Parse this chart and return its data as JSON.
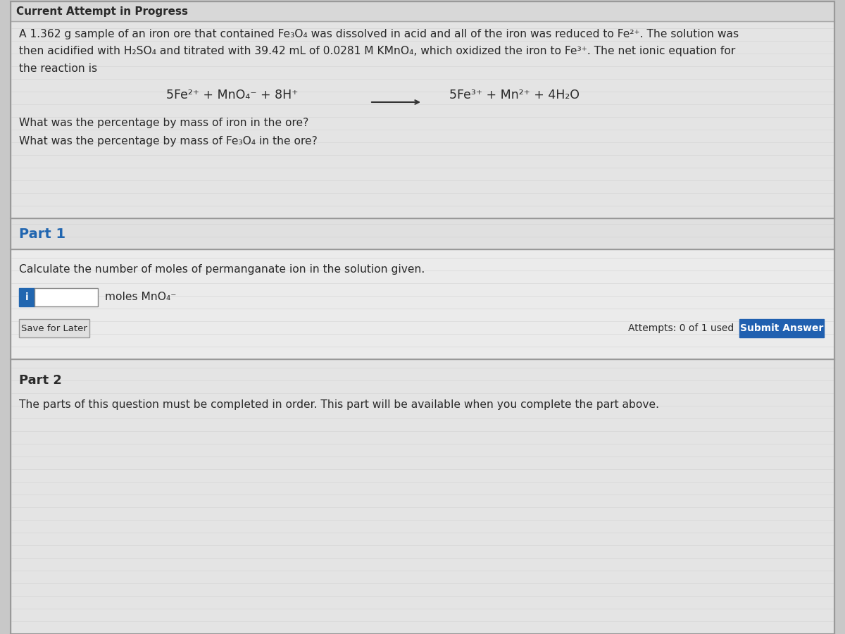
{
  "bg_color": "#c8c8c8",
  "header_text": "Current Attempt in Progress",
  "body_line1": "A 1.362 g sample of an iron ore that contained Fe₃O₄ was dissolved in acid and all of the iron was reduced to Fe²⁺. The solution was",
  "body_line2": "then acidified with H₂SO₄ and titrated with 39.42 mL of 0.0281 M KMnO₄, which oxidized the iron to Fe³⁺. The net ionic equation for",
  "body_line3": "the reaction is",
  "eq_left": "5Fe²⁺ + MnO₄⁻ + 8H⁺",
  "eq_right": "5Fe³⁺ + Mn²⁺ + 4H₂O",
  "q1": "What was the percentage by mass of iron in the ore?",
  "q2": "What was the percentage by mass of Fe₃O₄ in the ore?",
  "part1_label": "Part 1",
  "part1_q": "Calculate the number of moles of permanganate ion in the solution given.",
  "input_label": "moles MnO₄⁻",
  "save_btn": "Save for Later",
  "attempts": "Attempts: 0 of 1 used",
  "submit_btn": "Submit Answer",
  "part2_label": "Part 2",
  "part2_text": "The parts of this question must be completed in order. This part will be available when you complete the part above.",
  "blue": "#2166b0",
  "dark_text": "#2a2a2a",
  "border_dark": "#aaaaaa",
  "border_light": "#cccccc",
  "panel_bg": "#e0e0e0",
  "section_bg": "#e8e8e8",
  "inner_bg": "#ebebeb",
  "white": "#ffffff",
  "submit_blue": "#2060b0"
}
